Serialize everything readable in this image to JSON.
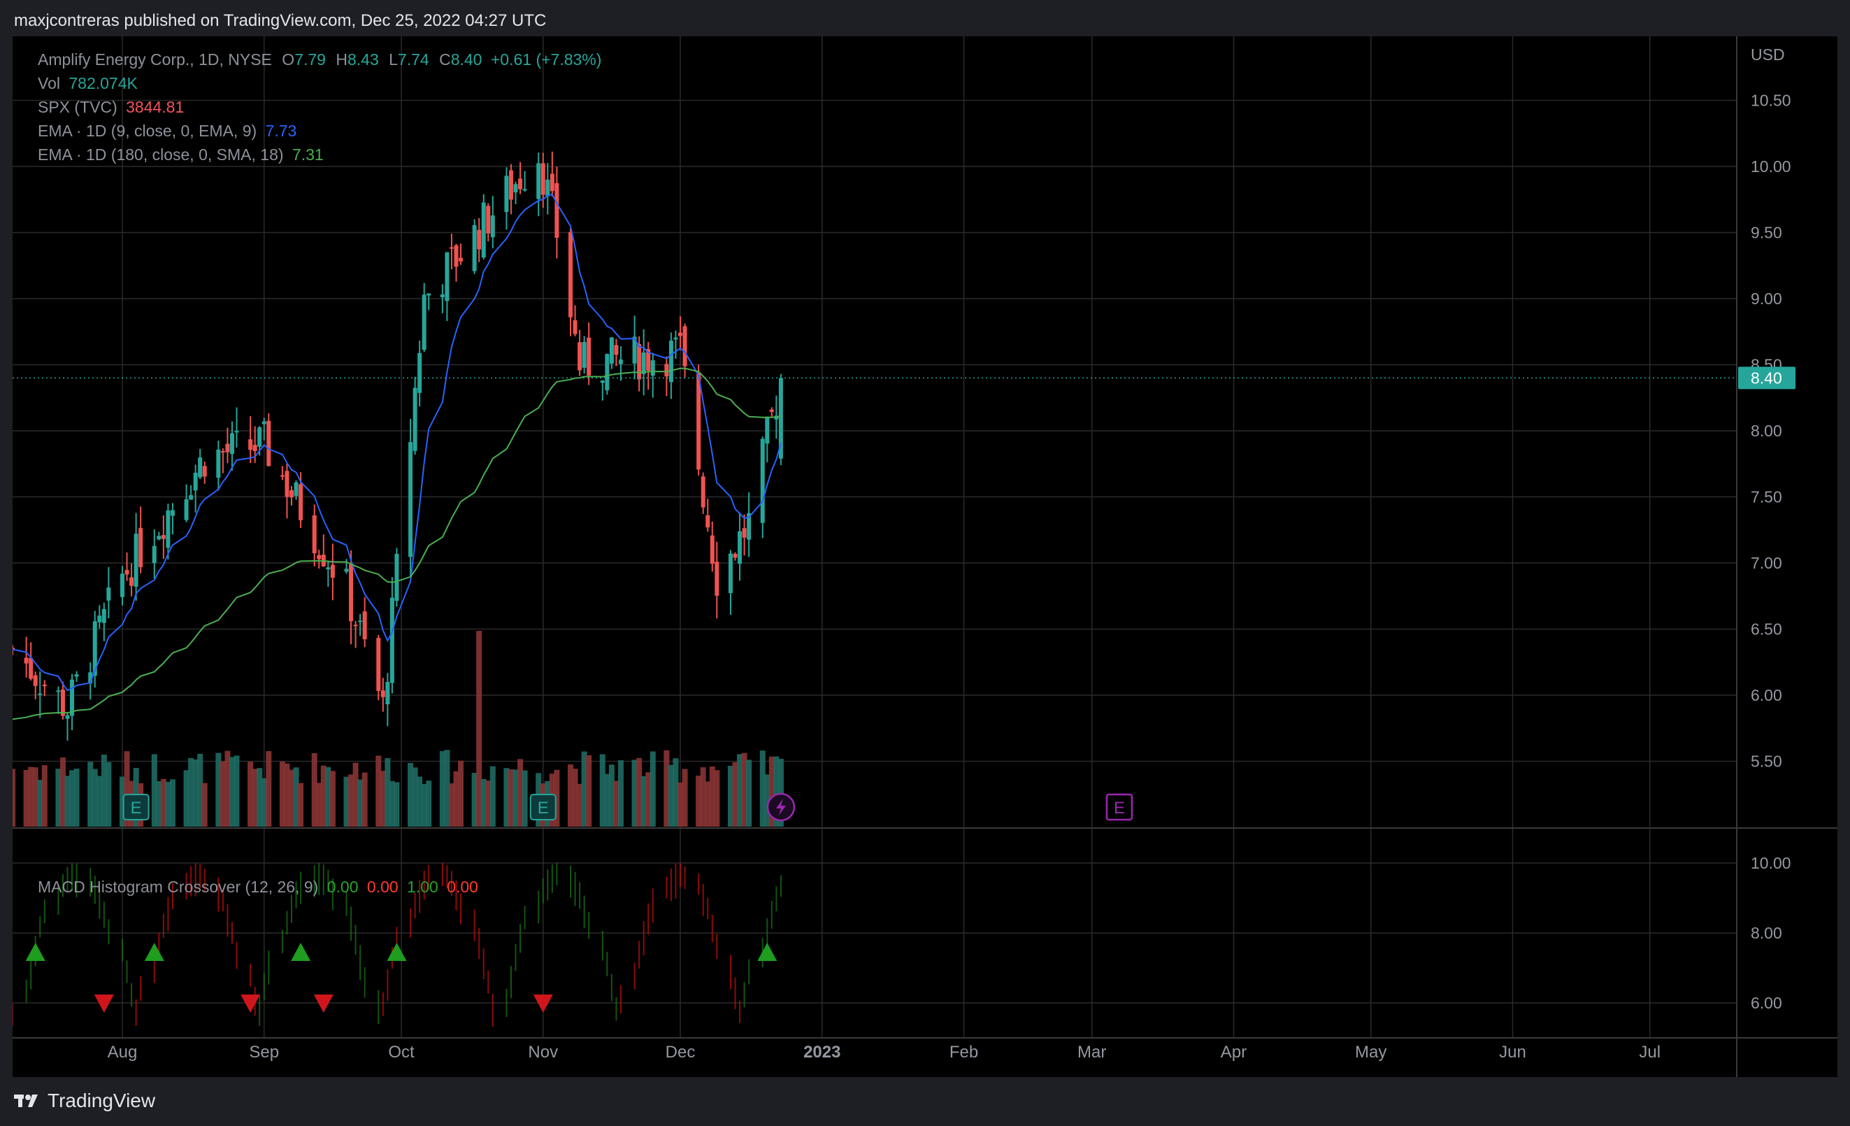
{
  "header": {
    "text": "maxjcontreras published on TradingView.com, Dec 25, 2022 04:27 UTC"
  },
  "legend": {
    "symbol": "Amplify Energy Corp., 1D, NYSE",
    "o_key": "O",
    "o": "7.79",
    "h_key": "H",
    "h": "8.43",
    "l_key": "L",
    "l": "7.74",
    "c_key": "C",
    "c": "8.40",
    "change": "+0.61 (+7.83%)",
    "vol_label": "Vol",
    "vol": "782.074K",
    "spx_label": "SPX (TVC)",
    "spx": "3844.81",
    "ema9_label": "EMA · 1D (9, close, 0, EMA, 9)",
    "ema9": "7.73",
    "ema180_label": "EMA · 1D (180, close, 0, SMA, 18)",
    "ema180": "7.31"
  },
  "macd_legend": {
    "label": "MACD Histogram Crossover (12, 26, 9)",
    "v1": "0.00",
    "v2": "0.00",
    "v3": "1.00",
    "v4": "0.00"
  },
  "price_axis": {
    "currency": "USD",
    "ticks": [
      "10.50",
      "10.00",
      "9.50",
      "9.00",
      "8.50",
      "8.00",
      "7.50",
      "7.00",
      "6.50",
      "6.00",
      "5.50"
    ],
    "last": "8.40"
  },
  "macd_axis": {
    "ticks": [
      "10.00",
      "8.00",
      "6.00"
    ]
  },
  "time_axis": {
    "labels": [
      "Aug",
      "Sep",
      "Oct",
      "Nov",
      "Dec",
      "2023",
      "Feb",
      "Mar",
      "Apr",
      "May",
      "Jun",
      "Jul"
    ]
  },
  "earnings_marker": "E",
  "footer": {
    "brand": "TradingView"
  },
  "colors": {
    "up": "#26a69a",
    "down": "#ef5350",
    "ema9": "#2962ff",
    "ema180": "#4caf50",
    "bg": "#000000",
    "grid": "#2a2a2a",
    "macd_up": "#1b7a1b",
    "macd_dn": "#c81010",
    "earnings": "#9c27b0"
  },
  "chart_data": [
    {
      "type": "candlestick",
      "title": "Amplify Energy Corp., 1D, NYSE",
      "ylim": [
        5.0,
        10.8
      ],
      "y_unit": "USD",
      "x_range": [
        "2022-07-08",
        "2023-07-20"
      ],
      "series": [
        {
          "name": "EMA · 1D (9, close, 0, EMA, 9)",
          "last": 7.73
        },
        {
          "name": "EMA · 1D (180, close, 0, SMA, 18)",
          "last": 7.31
        }
      ],
      "last_close": 8.4,
      "key_points": [
        {
          "date": "2022-07-08",
          "close": 6.35
        },
        {
          "date": "2022-07-20",
          "close": 5.9
        },
        {
          "date": "2022-08-01",
          "close": 6.9
        },
        {
          "date": "2022-08-19",
          "close": 7.8
        },
        {
          "date": "2022-09-01",
          "close": 7.9
        },
        {
          "date": "2022-09-19",
          "close": 6.8
        },
        {
          "date": "2022-09-27",
          "close": 5.9
        },
        {
          "date": "2022-10-06",
          "close": 9.0
        },
        {
          "date": "2022-10-31",
          "close": 10.1
        },
        {
          "date": "2022-11-04",
          "close": 9.5
        },
        {
          "date": "2022-11-09",
          "close": 8.5
        },
        {
          "date": "2022-12-01",
          "close": 8.6
        },
        {
          "date": "2022-12-09",
          "close": 6.9
        },
        {
          "date": "2022-12-16",
          "close": 7.3
        },
        {
          "date": "2022-12-23",
          "close": 8.4
        }
      ]
    },
    {
      "type": "bar",
      "title": "MACD Histogram Crossover (12, 26, 9)",
      "ylim": [
        5.0,
        11.0
      ],
      "signals": [
        {
          "date": "2022-07-13",
          "dir": "up"
        },
        {
          "date": "2022-07-28",
          "dir": "down"
        },
        {
          "date": "2022-08-08",
          "dir": "up"
        },
        {
          "date": "2022-08-29",
          "dir": "down"
        },
        {
          "date": "2022-09-09",
          "dir": "up"
        },
        {
          "date": "2022-09-14",
          "dir": "down"
        },
        {
          "date": "2022-09-30",
          "dir": "up"
        },
        {
          "date": "2022-11-01",
          "dir": "down"
        },
        {
          "date": "2022-12-20",
          "dir": "up"
        }
      ]
    }
  ]
}
